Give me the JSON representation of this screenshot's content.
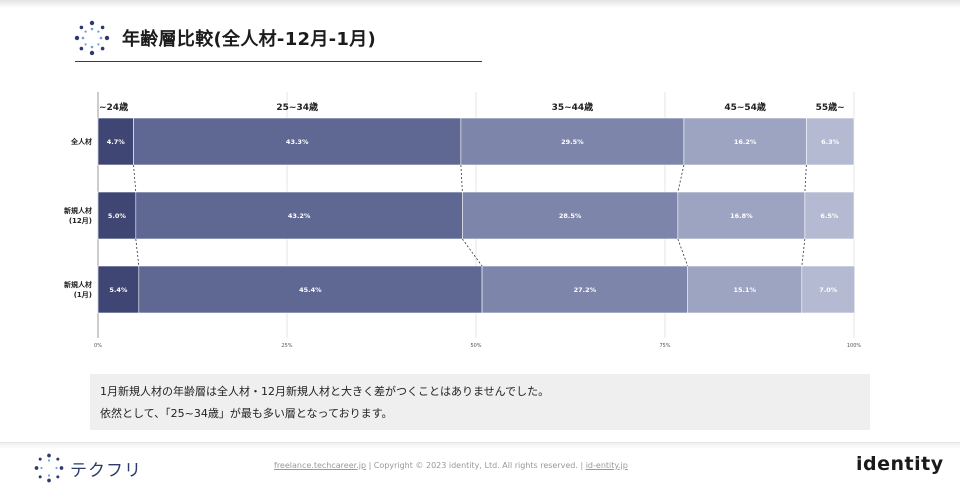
{
  "header": {
    "title": "年齢層比較(全人材-12月-1月)"
  },
  "chart_data": {
    "type": "bar",
    "orientation": "horizontal",
    "stacked": true,
    "categories": [
      {
        "id": "all",
        "lines": [
          "全人材"
        ]
      },
      {
        "id": "dec",
        "lines": [
          "新規人材",
          "(12月)"
        ]
      },
      {
        "id": "jan",
        "lines": [
          "新規人材",
          "(1月)"
        ]
      }
    ],
    "series": [
      {
        "name": "~24歳",
        "color": "#3f4673",
        "values": [
          4.7,
          5.0,
          5.4
        ],
        "labels": [
          "4.7%",
          "5.0%",
          "5.4%"
        ]
      },
      {
        "name": "25~34歳",
        "color": "#5e6893",
        "values": [
          43.3,
          43.2,
          45.4
        ],
        "labels": [
          "43.3%",
          "43.2%",
          "45.4%"
        ]
      },
      {
        "name": "35~44歳",
        "color": "#7d86aa",
        "values": [
          29.5,
          28.5,
          27.2
        ],
        "labels": [
          "29.5%",
          "28.5%",
          "27.2%"
        ]
      },
      {
        "name": "45~54歳",
        "color": "#9da4c2",
        "values": [
          16.2,
          16.8,
          15.1
        ],
        "labels": [
          "16.2%",
          "16.8%",
          "15.1%"
        ]
      },
      {
        "name": "55歳~",
        "color": "#b5bad3",
        "values": [
          6.3,
          6.5,
          7.0
        ],
        "labels": [
          "6.3%",
          "6.5%",
          "7.0%"
        ]
      }
    ],
    "xlim": [
      0,
      100
    ],
    "xticks": [
      "0%",
      "25%",
      "50%",
      "75%",
      "100%"
    ],
    "legend_position": "top",
    "grid": true
  },
  "note": {
    "line1": "1月新規人材の年齢層は全人材・12月新規人材と大きく差がつくことはありませんでした。",
    "line2": "依然として、「25~34歳」が最も多い層となっております。"
  },
  "footer": {
    "brand": "テクフリ",
    "link1": "freelance.techcareer.jp",
    "copyright": "|  Copyright © 2023 identity, Ltd. All rights reserved.  |",
    "link2": "id-entity.jp",
    "company": "identity"
  }
}
